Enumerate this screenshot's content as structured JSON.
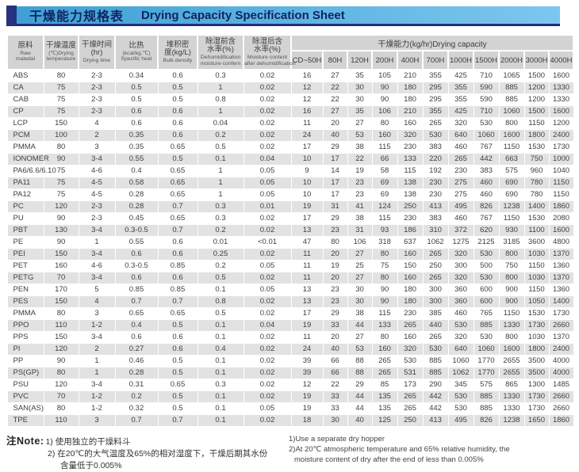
{
  "title": {
    "zh": "干燥能力规格表",
    "en": "Drying Capacity Specification Sheet"
  },
  "table": {
    "capacity_group_header": "干燥能力(kg/hr)Drying capacity",
    "spec_columns": [
      {
        "main": [
          "原料"
        ],
        "sub": [
          "Raw",
          "matedal"
        ]
      },
      {
        "main": [
          "干燥温度"
        ],
        "sub": [
          "(℃)Drying",
          "temperature"
        ]
      },
      {
        "main": [
          "干燥时间",
          "(hr)"
        ],
        "sub": [
          "Drying time"
        ]
      },
      {
        "main": [
          "比热"
        ],
        "sub": [
          "(kcal/kg.℃)",
          "Specific heat"
        ]
      },
      {
        "main": [
          "堆积密",
          "度(kg/L)"
        ],
        "sub": [
          "Bulk density"
        ]
      },
      {
        "main": [
          "除湿前含",
          "水率(%)"
        ],
        "sub": [
          "Dehumidification",
          "moisture confern"
        ]
      },
      {
        "main": [
          "除湿后含",
          "水率(%)"
        ],
        "sub": [
          "Moisture content",
          "after dehumidification"
        ]
      }
    ],
    "capacity_columns": [
      "CD~50H",
      "80H",
      "120H",
      "200H",
      "400H",
      "700H",
      "1000H",
      "1500H",
      "2000H",
      "3000H",
      "4000H"
    ],
    "rows": [
      {
        "material": "ABS",
        "specs": [
          "80",
          "2-3",
          "0.34",
          "0.6",
          "0.3",
          "0.02"
        ],
        "capacity": [
          "16",
          "27",
          "35",
          "105",
          "210",
          "355",
          "425",
          "710",
          "1065",
          "1500",
          "1600"
        ]
      },
      {
        "material": "CA",
        "specs": [
          "75",
          "2-3",
          "0.5",
          "0.5",
          "1",
          "0.02"
        ],
        "capacity": [
          "12",
          "22",
          "30",
          "90",
          "180",
          "295",
          "355",
          "590",
          "885",
          "1200",
          "1330"
        ]
      },
      {
        "material": "CAB",
        "specs": [
          "75",
          "2-3",
          "0.5",
          "0.5",
          "0.8",
          "0.02"
        ],
        "capacity": [
          "12",
          "22",
          "30",
          "90",
          "180",
          "295",
          "355",
          "590",
          "885",
          "1200",
          "1330"
        ]
      },
      {
        "material": "CP",
        "specs": [
          "75",
          "2-3",
          "0.6",
          "0.6",
          "1",
          "0.02"
        ],
        "capacity": [
          "16",
          "27",
          "35",
          "106",
          "210",
          "355",
          "425",
          "710",
          "1060",
          "1500",
          "1600"
        ]
      },
      {
        "material": "LCP",
        "specs": [
          "150",
          "4",
          "0.6",
          "0.6",
          "0.04",
          "0.02"
        ],
        "capacity": [
          "11",
          "20",
          "27",
          "80",
          "160",
          "265",
          "320",
          "530",
          "800",
          "1150",
          "1200"
        ]
      },
      {
        "material": "PCM",
        "specs": [
          "100",
          "2",
          "0.35",
          "0.6",
          "0.2",
          "0.02"
        ],
        "capacity": [
          "24",
          "40",
          "53",
          "160",
          "320",
          "530",
          "640",
          "1060",
          "1600",
          "1800",
          "2400"
        ]
      },
      {
        "material": "PMMA",
        "specs": [
          "80",
          "3",
          "0.35",
          "0.65",
          "0.5",
          "0.02"
        ],
        "capacity": [
          "17",
          "29",
          "38",
          "115",
          "230",
          "383",
          "460",
          "767",
          "1150",
          "1530",
          "1730"
        ]
      },
      {
        "material": "IONOMER",
        "specs": [
          "90",
          "3-4",
          "0.55",
          "0.5",
          "0.1",
          "0.04"
        ],
        "capacity": [
          "10",
          "17",
          "22",
          "66",
          "133",
          "220",
          "265",
          "442",
          "663",
          "750",
          "1000"
        ]
      },
      {
        "material": "PA6/6.6/6.10",
        "specs": [
          "75",
          "4-6",
          "0.4",
          "0.65",
          "1",
          "0.05"
        ],
        "capacity": [
          "9",
          "14",
          "19",
          "58",
          "115",
          "192",
          "230",
          "383",
          "575",
          "960",
          "1040"
        ]
      },
      {
        "material": "PA11",
        "specs": [
          "75",
          "4-5",
          "0.58",
          "0.65",
          "1",
          "0.05"
        ],
        "capacity": [
          "10",
          "17",
          "23",
          "69",
          "138",
          "230",
          "275",
          "460",
          "690",
          "780",
          "1150"
        ]
      },
      {
        "material": "PA12",
        "specs": [
          "75",
          "4-5",
          "0.28",
          "0.65",
          "1",
          "0.05"
        ],
        "capacity": [
          "10",
          "17",
          "23",
          "69",
          "138",
          "230",
          "275",
          "460",
          "690",
          "780",
          "1150"
        ]
      },
      {
        "material": "PC",
        "specs": [
          "120",
          "2-3",
          "0.28",
          "0.7",
          "0.3",
          "0.01"
        ],
        "capacity": [
          "19",
          "31",
          "41",
          "124",
          "250",
          "413",
          "495",
          "826",
          "1238",
          "1400",
          "1860"
        ]
      },
      {
        "material": "PU",
        "specs": [
          "90",
          "2-3",
          "0.45",
          "0.65",
          "0.3",
          "0.02"
        ],
        "capacity": [
          "17",
          "29",
          "38",
          "115",
          "230",
          "383",
          "460",
          "767",
          "1150",
          "1530",
          "2080"
        ]
      },
      {
        "material": "PBT",
        "specs": [
          "130",
          "3-4",
          "0.3-0.5",
          "0.7",
          "0.2",
          "0.02"
        ],
        "capacity": [
          "13",
          "23",
          "31",
          "93",
          "186",
          "310",
          "372",
          "620",
          "930",
          "1100",
          "1600"
        ]
      },
      {
        "material": "PE",
        "specs": [
          "90",
          "1",
          "0.55",
          "0.6",
          "0.01",
          "<0.01"
        ],
        "capacity": [
          "47",
          "80",
          "106",
          "318",
          "637",
          "1062",
          "1275",
          "2125",
          "3185",
          "3600",
          "4800"
        ]
      },
      {
        "material": "PEI",
        "specs": [
          "150",
          "3-4",
          "0.6",
          "0.6",
          "0.25",
          "0.02"
        ],
        "capacity": [
          "11",
          "20",
          "27",
          "80",
          "160",
          "265",
          "320",
          "530",
          "800",
          "1030",
          "1370"
        ]
      },
      {
        "material": "PET",
        "specs": [
          "160",
          "4-6",
          "0.3-0.5",
          "0.85",
          "0.2",
          "0.05"
        ],
        "capacity": [
          "11",
          "19",
          "25",
          "75",
          "150",
          "250",
          "300",
          "500",
          "750",
          "1150",
          "1360"
        ]
      },
      {
        "material": "PETG",
        "specs": [
          "70",
          "3-4",
          "0.6",
          "0.6",
          "0.5",
          "0.02"
        ],
        "capacity": [
          "11",
          "20",
          "27",
          "80",
          "160",
          "265",
          "320",
          "530",
          "800",
          "1030",
          "1370"
        ]
      },
      {
        "material": "PEN",
        "specs": [
          "170",
          "5",
          "0.85",
          "0.85",
          "0.1",
          "0.05"
        ],
        "capacity": [
          "13",
          "23",
          "30",
          "90",
          "180",
          "300",
          "360",
          "600",
          "900",
          "1150",
          "1360"
        ]
      },
      {
        "material": "PES",
        "specs": [
          "150",
          "4",
          "0.7",
          "0.7",
          "0.8",
          "0.02"
        ],
        "capacity": [
          "13",
          "23",
          "30",
          "90",
          "180",
          "300",
          "360",
          "600",
          "900",
          "1050",
          "1400"
        ]
      },
      {
        "material": "PMMA",
        "specs": [
          "80",
          "3",
          "0.65",
          "0.65",
          "0.5",
          "0.02"
        ],
        "capacity": [
          "17",
          "29",
          "38",
          "115",
          "230",
          "385",
          "460",
          "765",
          "1150",
          "1530",
          "1730"
        ]
      },
      {
        "material": "PPO",
        "specs": [
          "110",
          "1-2",
          "0.4",
          "0.5",
          "0.1",
          "0.04"
        ],
        "capacity": [
          "19",
          "33",
          "44",
          "133",
          "265",
          "440",
          "530",
          "885",
          "1330",
          "1730",
          "2660"
        ]
      },
      {
        "material": "PPS",
        "specs": [
          "150",
          "3-4",
          "0.6",
          "0.6",
          "0.1",
          "0.02"
        ],
        "capacity": [
          "11",
          "20",
          "27",
          "80",
          "160",
          "265",
          "320",
          "530",
          "800",
          "1030",
          "1370"
        ]
      },
      {
        "material": "PI",
        "specs": [
          "120",
          "2",
          "0.27",
          "0.6",
          "0.4",
          "0.02"
        ],
        "capacity": [
          "24",
          "40",
          "53",
          "160",
          "320",
          "530",
          "640",
          "1060",
          "1600",
          "1800",
          "2400"
        ]
      },
      {
        "material": "PP",
        "specs": [
          "90",
          "1",
          "0.46",
          "0.5",
          "0.1",
          "0.02"
        ],
        "capacity": [
          "39",
          "66",
          "88",
          "265",
          "530",
          "885",
          "1060",
          "1770",
          "2655",
          "3500",
          "4000"
        ]
      },
      {
        "material": "PS(GP)",
        "specs": [
          "80",
          "1",
          "0.28",
          "0.5",
          "0.1",
          "0.02"
        ],
        "capacity": [
          "39",
          "66",
          "88",
          "265",
          "531",
          "885",
          "1062",
          "1770",
          "2655",
          "3500",
          "4000"
        ]
      },
      {
        "material": "PSU",
        "specs": [
          "120",
          "3-4",
          "0.31",
          "0.65",
          "0.3",
          "0.02"
        ],
        "capacity": [
          "12",
          "22",
          "29",
          "85",
          "173",
          "290",
          "345",
          "575",
          "865",
          "1300",
          "1485"
        ]
      },
      {
        "material": "PVC",
        "specs": [
          "70",
          "1-2",
          "0.2",
          "0.5",
          "0.1",
          "0.02"
        ],
        "capacity": [
          "19",
          "33",
          "44",
          "135",
          "265",
          "442",
          "530",
          "885",
          "1330",
          "1730",
          "2660"
        ]
      },
      {
        "material": "SAN(AS)",
        "specs": [
          "80",
          "1-2",
          "0.32",
          "0.5",
          "0.1",
          "0.05"
        ],
        "capacity": [
          "19",
          "33",
          "44",
          "135",
          "265",
          "442",
          "530",
          "885",
          "1330",
          "1730",
          "2660"
        ]
      },
      {
        "material": "TPE",
        "specs": [
          "110",
          "3",
          "0.7",
          "0.7",
          "0.1",
          "0.02"
        ],
        "capacity": [
          "18",
          "30",
          "40",
          "125",
          "250",
          "413",
          "495",
          "826",
          "1238",
          "1650",
          "1860"
        ]
      }
    ]
  },
  "notes": {
    "label_zh": "注Note:",
    "zh": [
      "1) 使用独立的干燥料斗",
      "2) 在20℃的大气温度及65%的相对湿度下，干燥后期其水份",
      "含量低于0.005%"
    ],
    "en": [
      "1)Use a separate dry hopper",
      "2)At 20℃ atmospheric temperature and 65% relative humidity, the",
      "moisture content of dry after the end of less than 0.005%"
    ]
  },
  "colors": {
    "titlebar_left": "#3e9fd5",
    "titlebar_right": "#7cc7ee",
    "accent_navy": "#27337f",
    "title_text": "#0f2560",
    "header_gray": "#d3d3d3",
    "row_alt_gray": "#e2e2e2"
  }
}
